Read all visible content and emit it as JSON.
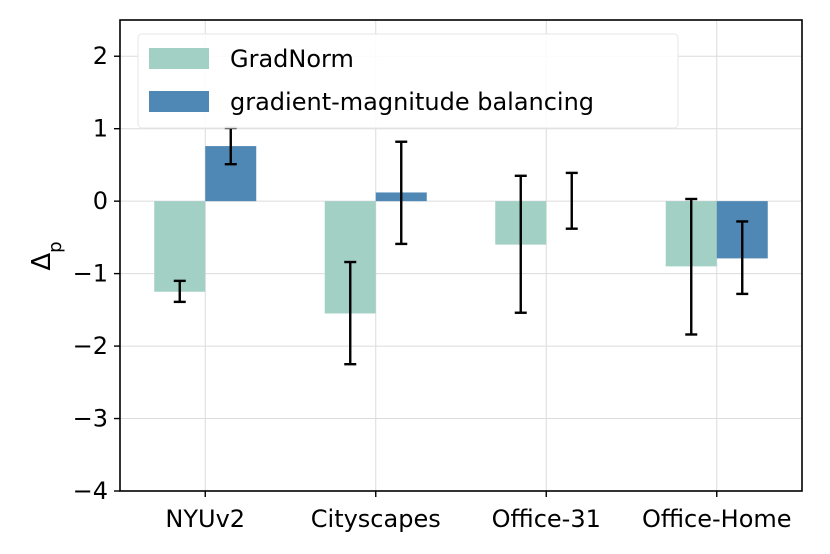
{
  "chart_data": {
    "type": "bar",
    "categories": [
      "NYUv2",
      "Cityscapes",
      "Office-31",
      "Office-Home"
    ],
    "series": [
      {
        "name": "GradNorm",
        "color": "#a2d0c4",
        "values": [
          -1.25,
          -1.55,
          -0.6,
          -0.9
        ],
        "error": [
          [
            -1.39,
            -1.1
          ],
          [
            -2.25,
            -0.84
          ],
          [
            -1.54,
            0.35
          ],
          [
            -1.84,
            0.03
          ]
        ]
      },
      {
        "name": "gradient-magnitude balancing",
        "color": "#4f88b4",
        "values": [
          0.76,
          0.12,
          0.0,
          -0.79
        ],
        "error": [
          [
            0.51,
            1.01
          ],
          [
            -0.59,
            0.82
          ],
          [
            -0.38,
            0.39
          ],
          [
            -1.28,
            -0.28
          ]
        ]
      }
    ],
    "ylabel": "Δp",
    "ylabel_main": "Δ",
    "ylabel_sub": "p",
    "ylim": [
      -4,
      2.5
    ],
    "yticks": [
      -4,
      -3,
      -2,
      -1,
      0,
      1,
      2
    ],
    "ytick_labels": [
      "−4",
      "−3",
      "−2",
      "−1",
      "0",
      "1",
      "2"
    ],
    "grid": true,
    "legend_position": "top-left"
  }
}
